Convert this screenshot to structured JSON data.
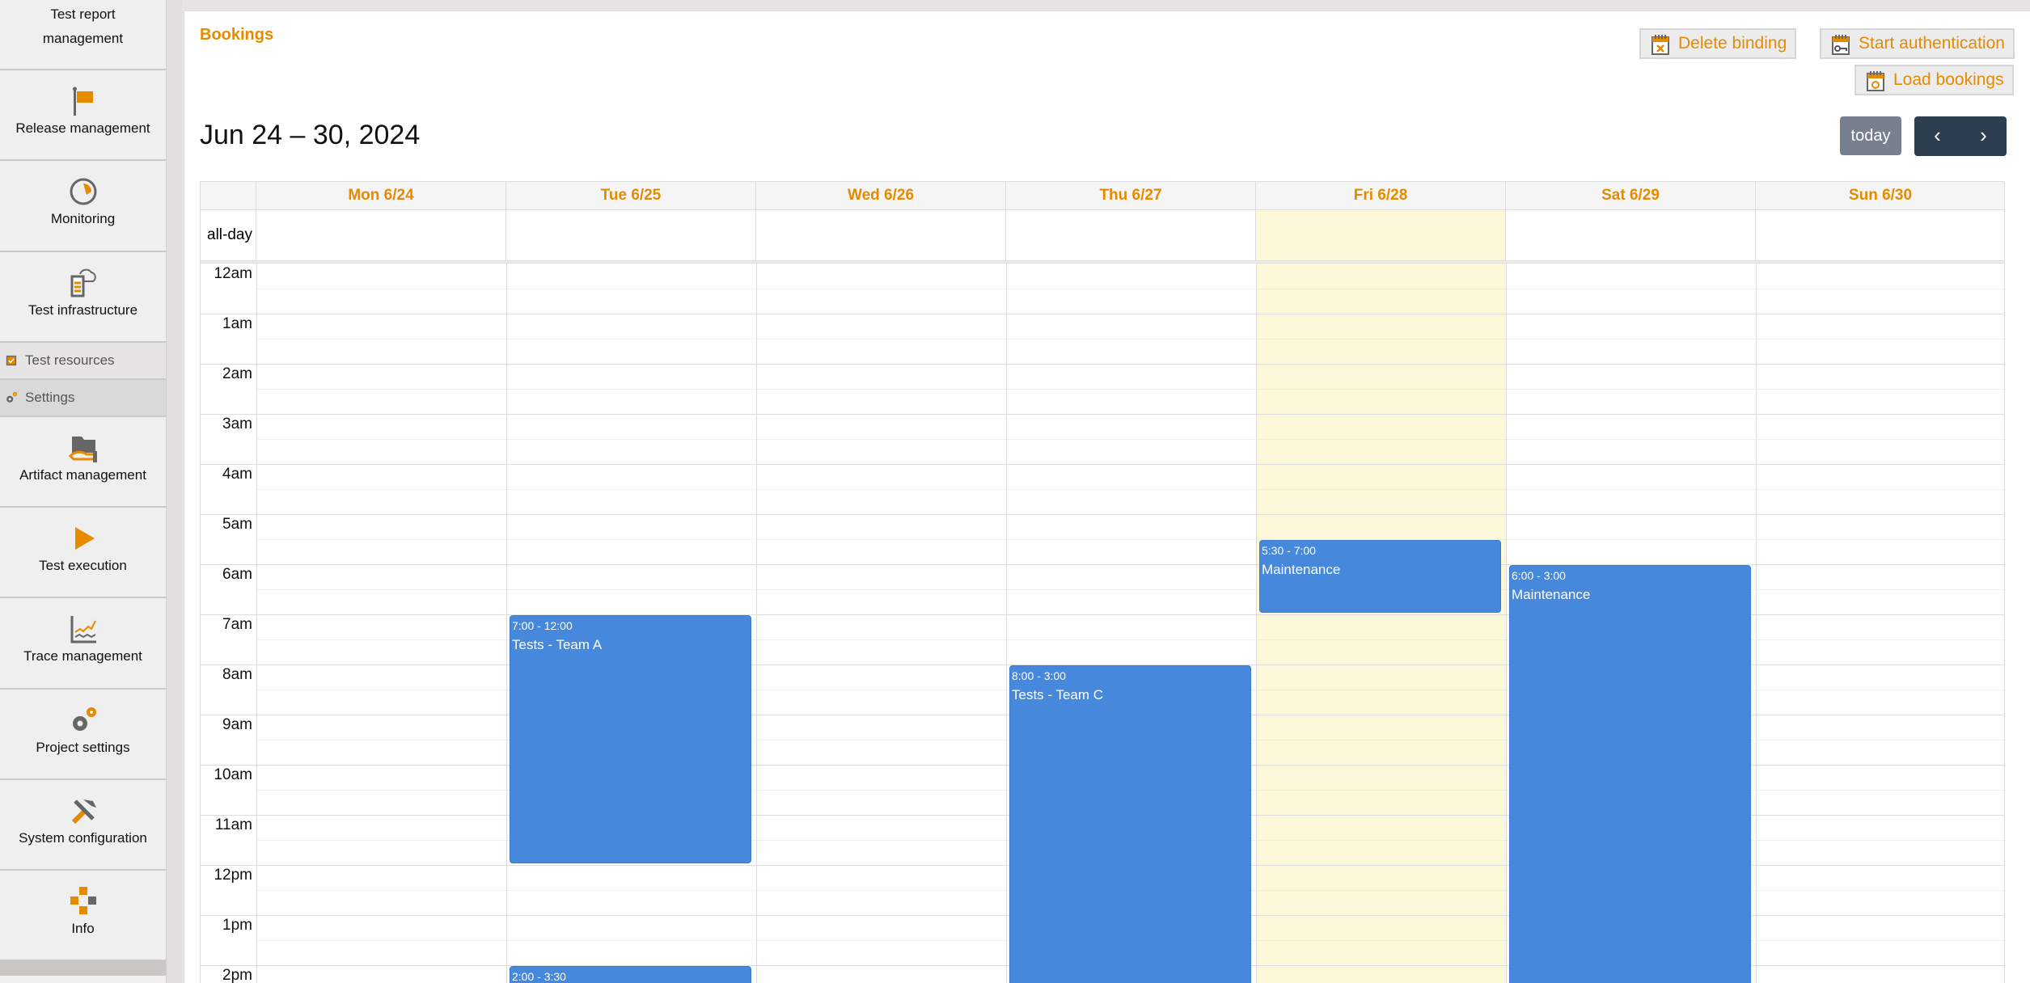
{
  "sidebar": {
    "items": [
      {
        "label": "Test report management",
        "icon": "report-icon"
      },
      {
        "label": "Release management",
        "icon": "flag-icon"
      },
      {
        "label": "Monitoring",
        "icon": "gauge-icon"
      },
      {
        "label": "Test infrastructure",
        "icon": "server-cloud-icon"
      },
      {
        "label": "Artifact management",
        "icon": "folder-hand-icon"
      },
      {
        "label": "Test execution",
        "icon": "play-icon"
      },
      {
        "label": "Trace management",
        "icon": "chart-line-icon"
      },
      {
        "label": "Project settings",
        "icon": "gears-icon"
      },
      {
        "label": "System configuration",
        "icon": "tools-icon"
      },
      {
        "label": "Info",
        "icon": "info-blocks-icon"
      }
    ],
    "subitems": [
      {
        "label": "Test resources",
        "icon": "chip-check-icon"
      },
      {
        "label": "Settings",
        "icon": "gears-icon"
      }
    ]
  },
  "page": {
    "title": "Bookings"
  },
  "toolbar": {
    "delete_binding": "Delete binding",
    "start_auth": "Start authentication",
    "load_bookings": "Load bookings"
  },
  "calendar": {
    "title": "Jun 24 – 30, 2024",
    "today_label": "today",
    "prev": "‹",
    "next": "›",
    "allday_label": "all-day",
    "days": [
      "Mon 6/24",
      "Tue 6/25",
      "Wed 6/26",
      "Thu 6/27",
      "Fri 6/28",
      "Sat 6/29",
      "Sun 6/30"
    ],
    "today_index": 4,
    "hours": [
      "12am",
      "1am",
      "2am",
      "3am",
      "4am",
      "5am",
      "6am",
      "7am",
      "8am",
      "9am",
      "10am",
      "11am",
      "12pm",
      "1pm",
      "2pm"
    ],
    "events": [
      {
        "day": 1,
        "start": 7,
        "end": 12,
        "time": "7:00 - 12:00",
        "title": "Tests - Team A"
      },
      {
        "day": 1,
        "start": 14,
        "end": 15.5,
        "time": "2:00 - 3:30",
        "title": ""
      },
      {
        "day": 3,
        "start": 8,
        "end": 15,
        "time": "8:00 - 3:00",
        "title": "Tests - Team C"
      },
      {
        "day": 4,
        "start": 5.5,
        "end": 7,
        "time": "5:30 - 7:00",
        "title": "Maintenance"
      },
      {
        "day": 5,
        "start": 6,
        "end": 15,
        "time": "6:00 - 3:00",
        "title": "Maintenance"
      }
    ],
    "colors": {
      "event": "#4688db",
      "today": "#fdf8d9",
      "accent": "#e68a00"
    }
  }
}
